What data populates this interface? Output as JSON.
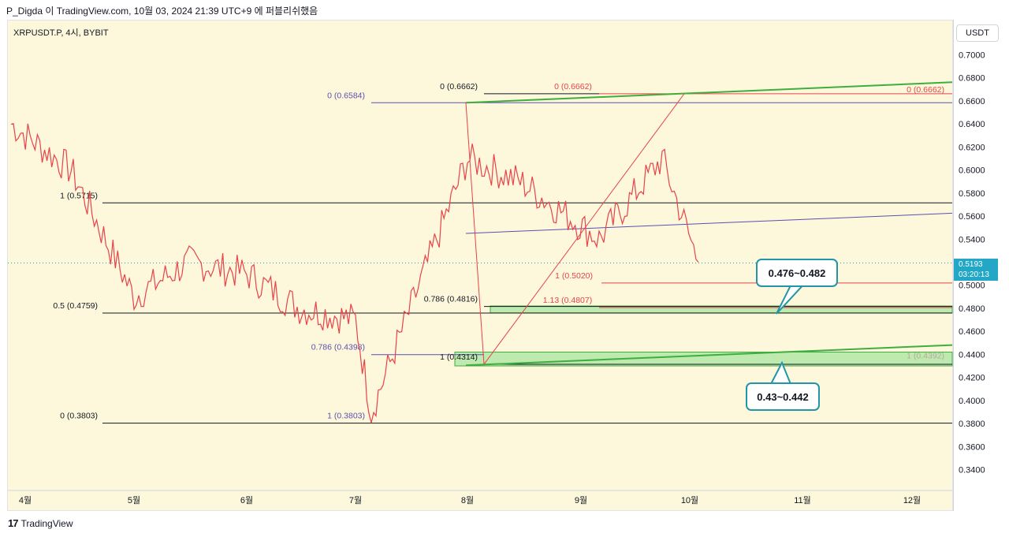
{
  "caption": "P_Digda 이 TradingView.com, 10월 03, 2024 21:39 UTC+9 에 퍼블리쉬했음",
  "symbol_title": "XRPUSDT.P, 4시, BYBIT",
  "currency": "USDT",
  "brand": "TradingView",
  "brand_mark": "17",
  "last_price": "0.5193",
  "countdown": "03:20:13",
  "colors": {
    "background": "#fdf8db",
    "candle": "#e8424a",
    "fib_black": "#131722",
    "fib_purple": "#5b4fb0",
    "fib_red": "#e8424a",
    "trend_green": "#3fae3f",
    "zone_fill": "#a8e6a0",
    "callout_border": "#2196a8",
    "last_price": "#22a7c6"
  },
  "chart_data": {
    "type": "line",
    "xlabel": "",
    "ylabel": "",
    "x_ticks": [
      "4월",
      "5월",
      "6월",
      "7월",
      "8월",
      "9월",
      "10월",
      "11월",
      "12월"
    ],
    "y_ticks": [
      "0.7000",
      "0.6800",
      "0.6600",
      "0.6400",
      "0.6200",
      "0.6000",
      "0.5800",
      "0.5600",
      "0.5400",
      "0.5200",
      "0.5000",
      "0.4800",
      "0.4600",
      "0.4400",
      "0.4200",
      "0.4000",
      "0.3800",
      "0.3600",
      "0.3400"
    ],
    "ylim": [
      0.3301,
      0.7065
    ],
    "series": [
      {
        "x": [
          "4월",
          "4월 중순",
          "5월",
          "5월 중순",
          "6월",
          "6월 중순",
          "7월",
          "7월 중순",
          "8월",
          "8월 중순",
          "9월",
          "9월 중순",
          "10월"
        ],
        "values": [
          0.64,
          0.6,
          0.49,
          0.52,
          0.51,
          0.48,
          0.47,
          0.39,
          0.61,
          0.59,
          0.54,
          0.61,
          0.52
        ]
      }
    ],
    "fib_levels": [
      {
        "label": "0 (0.6662)",
        "price": 0.6662,
        "color": "black"
      },
      {
        "label": "0 (0.6662)",
        "price": 0.6662,
        "color": "red"
      },
      {
        "label": "0 (0.6584)",
        "price": 0.6584,
        "color": "purple"
      },
      {
        "label": "1 (0.5715)",
        "price": 0.5715,
        "color": "black"
      },
      {
        "label": "1 (0.5020)",
        "price": 0.502,
        "color": "red"
      },
      {
        "label": "0.5 (0.4759)",
        "price": 0.4759,
        "color": "black"
      },
      {
        "label": "0.786 (0.4816)",
        "price": 0.4816,
        "color": "black"
      },
      {
        "label": "1.13 (0.4807)",
        "price": 0.4807,
        "color": "red"
      },
      {
        "label": "0.786 (0.4398)",
        "price": 0.4398,
        "color": "purple"
      },
      {
        "label": "1 (0.4314)",
        "price": 0.4314,
        "color": "black"
      },
      {
        "label": "1 (0.3803)",
        "price": 0.3803,
        "color": "purple"
      },
      {
        "label": "0 (0.3803)",
        "price": 0.3803,
        "color": "black"
      }
    ],
    "zones": [
      {
        "label": "0.476~0.482",
        "low": 0.476,
        "high": 0.482
      },
      {
        "label": "0.43~0.442",
        "low": 0.43,
        "high": 0.442
      }
    ],
    "trendline_labels": [
      {
        "label": "0 (0.6662)",
        "price": 0.6662
      },
      {
        "label": "1 (0.4392)",
        "price": 0.4392
      }
    ]
  }
}
